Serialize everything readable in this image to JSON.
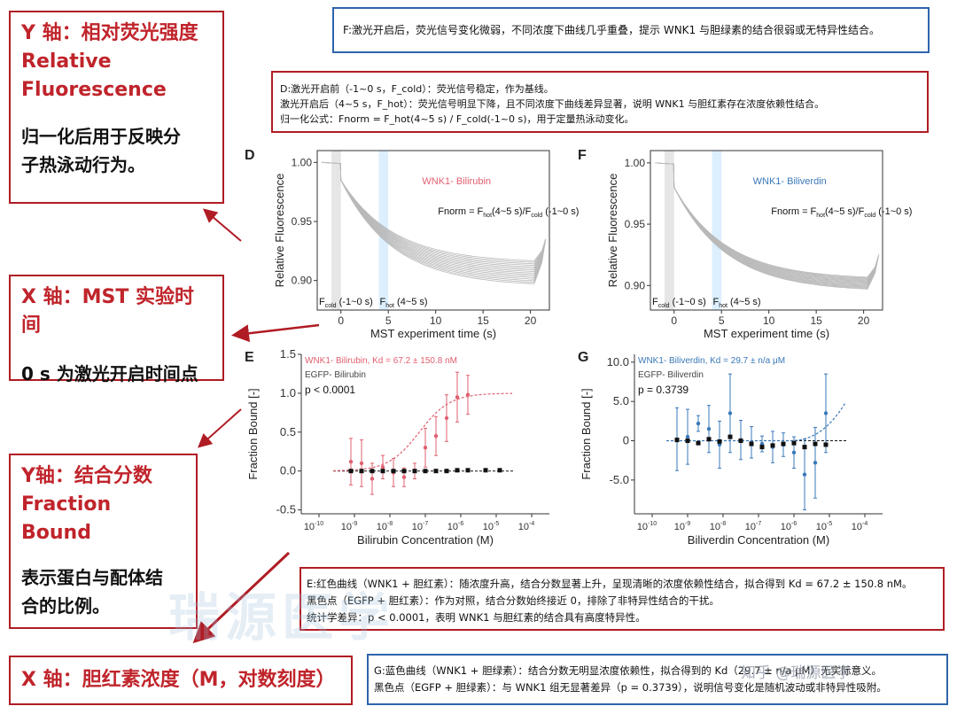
{
  "labels": {
    "y_top": {
      "title1": "Y 轴：相对荧光强度",
      "title2": "Relative",
      "title3": "Fluorescence",
      "desc1": "归一化后用于反映分",
      "desc2": "子热泳动行为。"
    },
    "x_top": {
      "title": "X 轴：MST 实验时间",
      "desc": "0 s 为激光开启时间点"
    },
    "y_bottom": {
      "title1": "Y轴：结合分数",
      "title2": "Fraction Bound",
      "desc1": "表示蛋白与配体结",
      "desc2": "合的比例。"
    },
    "x_bottom": {
      "title": "X 轴：胆红素浓度（M，对数刻度）"
    }
  },
  "notes": {
    "F": "F:激光开启后，荧光信号变化微弱，不同浓度下曲线几乎重叠，提示 WNK1 与胆绿素的结合很弱或无特异性结合。",
    "D": [
      "D:激光开启前（-1~0 s，F_cold）：荧光信号稳定，作为基线。",
      "激光开启后（4~5 s，F_hot）：荧光信号明显下降，且不同浓度下曲线差异显著，说明 WNK1 与胆红素存在浓度依赖性结合。",
      "归一化公式：Fnorm = F_hot(4~5 s) / F_cold(-1~0 s)，用于定量热泳动变化。"
    ],
    "E": [
      "E:红色曲线（WNK1 + 胆红素）：随浓度升高，结合分数显著上升，呈现清晰的浓度依赖性结合，拟合得到 Kd = 67.2 ± 150.8 nM。",
      "黑色点（EGFP + 胆红素）：作为对照，结合分数始终接近 0，排除了非特异性结合的干扰。",
      "统计学差异：p < 0.0001，表明 WNK1 与胆红素的结合具有高度特异性。"
    ],
    "G": [
      "G:蓝色曲线（WNK1 + 胆绿素）：结合分数无明显浓度依赖性，拟合得到的 Kd（29.7 ± n/a μM）无实际意义。",
      "黑色点（EGFP + 胆绿素）：与 WNK1 组无显著差异（p = 0.3739），说明信号变化是随机波动或非特异性吸附。"
    ]
  },
  "watermark": {
    "text": "知乎 @瑞源医学",
    "logo": "瑞源医学"
  },
  "panels": {
    "D": {
      "letter": "D",
      "legend": "WNK1- Bilirubin",
      "color": "#e06070",
      "formula": "Fnorm = F",
      "sub1": "hot",
      "mid": "(4~5 s)/F",
      "sub2": "cold",
      "tail": " (-1~0 s)",
      "cold_label": "F",
      "cold_sub": "cold",
      "cold_tail": " (-1~0 s)",
      "hot_label": "F",
      "hot_sub": "hot",
      "hot_tail": " (4~5 s)"
    },
    "F": {
      "letter": "F",
      "legend": "WNK1- Biliverdin",
      "color": "#3a78b8",
      "formula": "Fnorm = F",
      "sub1": "hot",
      "mid": "(4~5 s)/F",
      "sub2": "cold",
      "tail": " (-1~0 s)",
      "cold_label": "F",
      "cold_sub": "cold",
      "cold_tail": " (-1~0 s)",
      "hot_label": "F",
      "hot_sub": "hot",
      "hot_tail": " (4~5 s)"
    },
    "E": {
      "letter": "E",
      "legend": "WNK1- Bilirubin, Kd = 67.2 ± 150.8 nM",
      "ctrl": "EGFP- Bilirubin",
      "pval": "p < 0.0001",
      "color": "#e06070"
    },
    "G": {
      "letter": "G",
      "legend": "WNK1- Biliverdin, Kd = 29.7 ± n/a μM",
      "ctrl": "EGFP- Biliverdin",
      "pval": "p = 0.3739",
      "color": "#3a78b8"
    }
  },
  "chart_data": [
    {
      "id": "D",
      "type": "line",
      "title": "",
      "xlabel": "MST experiment time (s)",
      "ylabel": "Relative Fluorescence",
      "xlim": [
        -2.5,
        22
      ],
      "ylim": [
        0.875,
        1.01
      ],
      "xticks": [
        0,
        5,
        10,
        15,
        20
      ],
      "yticks": [
        1.0,
        0.95,
        0.9
      ],
      "ytick_labels": [
        "1.00",
        "0.95",
        "0.90"
      ],
      "baseline": 1.0,
      "curves": {
        "count": 16,
        "drop_start": 0.985,
        "end_min": 0.895,
        "end_max": 0.915,
        "final_rise": 0.935
      }
    },
    {
      "id": "F",
      "type": "line",
      "title": "",
      "xlabel": "MST experiment time (s)",
      "ylabel": "Relative Fluorescence",
      "xlim": [
        -2.5,
        22
      ],
      "ylim": [
        0.88,
        1.01
      ],
      "xticks": [
        0,
        5,
        10,
        15,
        20
      ],
      "yticks": [
        1.0,
        0.95,
        0.9
      ],
      "ytick_labels": [
        "1.00",
        "0.95",
        "0.90"
      ],
      "baseline": 1.0,
      "curves": {
        "count": 16,
        "drop_start": 0.98,
        "end_min": 0.895,
        "end_max": 0.905,
        "final_rise": 0.925
      }
    },
    {
      "id": "E",
      "type": "scatter",
      "xlabel": "Bilirubin Concentration (M)",
      "ylabel": "Fraction Bound [-]",
      "xlim_log10": [
        -10.5,
        -3.5
      ],
      "ylim": [
        -0.55,
        1.5
      ],
      "yticks": [
        -0.5,
        0.0,
        0.5,
        1.0,
        1.5
      ],
      "ytick_labels": [
        "-0.5",
        "0.0",
        "0.5",
        "1.0",
        "1.5"
      ],
      "xticks_log10": [
        -10,
        -9,
        -8,
        -7,
        -6,
        -5,
        -4
      ],
      "series": [
        {
          "name": "WNK1- Bilirubin",
          "log10x": [
            -9.1,
            -8.8,
            -8.5,
            -8.2,
            -7.9,
            -7.6,
            -7.3,
            -7.0,
            -6.7,
            -6.4,
            -6.1,
            -5.8
          ],
          "y": [
            0.12,
            0.1,
            -0.1,
            0.05,
            -0.02,
            -0.08,
            0.0,
            0.3,
            0.45,
            0.68,
            0.95,
            0.98
          ],
          "err": [
            0.3,
            0.3,
            0.2,
            0.15,
            0.18,
            0.12,
            0.1,
            0.25,
            0.25,
            0.3,
            0.32,
            0.25
          ]
        },
        {
          "name": "EGFP- Bilirubin",
          "log10x": [
            -9.1,
            -8.8,
            -8.5,
            -8.2,
            -7.9,
            -7.6,
            -7.3,
            -7.0,
            -6.7,
            -6.4,
            -6.1,
            -5.8,
            -5.3,
            -4.9
          ],
          "y": [
            0,
            0,
            0,
            0,
            0,
            0,
            0,
            0,
            0,
            0,
            0.01,
            0.01,
            0.01,
            0.01
          ]
        }
      ]
    },
    {
      "id": "G",
      "type": "scatter",
      "xlabel": "Biliverdin Concentration (M)",
      "ylabel": "Fraction Bound [-]",
      "xlim_log10": [
        -10.5,
        -3.5
      ],
      "ylim": [
        -9.3,
        11
      ],
      "yticks": [
        -5.0,
        0,
        5.0,
        10.0
      ],
      "ytick_labels": [
        "-5.0",
        "0",
        "5.0",
        "10.0"
      ],
      "xticks_log10": [
        -10,
        -9,
        -8,
        -7,
        -6,
        -5,
        -4
      ],
      "series": [
        {
          "name": "WNK1- Biliverdin",
          "log10x": [
            -9.3,
            -9.0,
            -8.7,
            -8.4,
            -8.1,
            -7.8,
            -7.5,
            -7.2,
            -6.9,
            -6.6,
            -6.3,
            -6.0,
            -5.7,
            -5.4,
            -5.1
          ],
          "y": [
            0.2,
            0.5,
            2.2,
            1.5,
            -0.5,
            3.5,
            0.1,
            -0.2,
            -0.4,
            -0.8,
            -0.5,
            -1.5,
            -4.3,
            -2.8,
            3.5
          ],
          "err": [
            4.0,
            3.5,
            1.0,
            3.0,
            3.0,
            5.0,
            2.5,
            2.0,
            1.0,
            2.0,
            1.5,
            2.0,
            4.5,
            4.5,
            5.0
          ]
        },
        {
          "name": "EGFP- Biliverdin",
          "log10x": [
            -9.3,
            -9.0,
            -8.7,
            -8.4,
            -8.1,
            -7.8,
            -7.5,
            -7.2,
            -6.9,
            -6.6,
            -6.3,
            -6.0,
            -5.7,
            -5.4,
            -5.1
          ],
          "y": [
            0.1,
            0.0,
            -0.3,
            0.2,
            -0.1,
            0.5,
            0.0,
            -0.4,
            -0.8,
            -0.6,
            -0.4,
            -0.3,
            -0.8,
            -0.4,
            -0.5
          ]
        }
      ]
    }
  ]
}
